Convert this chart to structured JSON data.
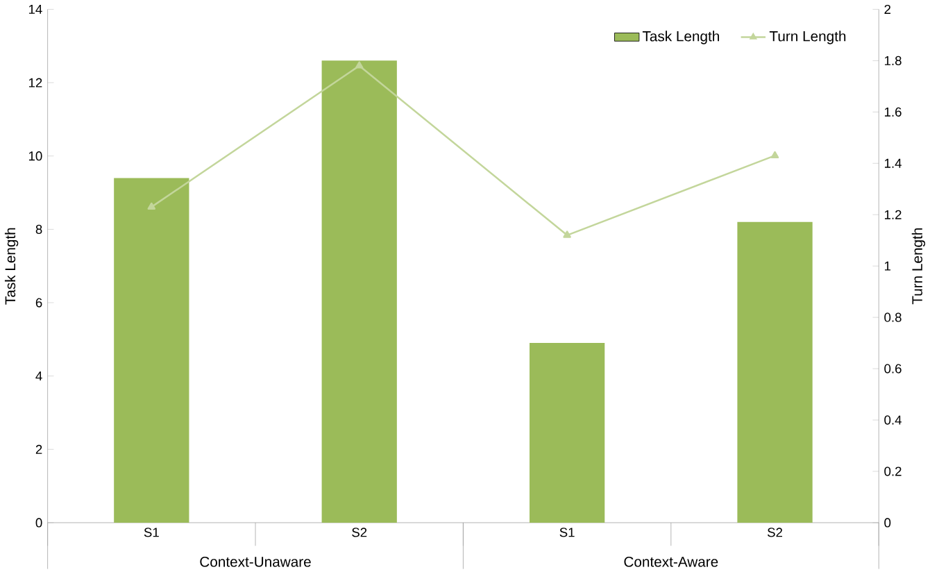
{
  "chart_data": {
    "type": "bar",
    "categories": [
      "S1",
      "S2",
      "S1",
      "S2"
    ],
    "series": [
      {
        "name": "Task Length",
        "color": "#9bbb59",
        "values": [
          9.4,
          12.6,
          4.9,
          8.2
        ]
      },
      {
        "name": "Turn Length",
        "type": "line",
        "axis": "y2",
        "color": "#c3d69b",
        "marker": "triangle",
        "values": [
          1.23,
          1.78,
          1.12,
          1.43
        ]
      }
    ],
    "ylabel": "Task Length",
    "y2label": "Turn Length",
    "ylim": [
      0,
      14
    ],
    "yticks": [
      0,
      2,
      4,
      6,
      8,
      10,
      12,
      14
    ],
    "y2lim": [
      0,
      2
    ],
    "y2ticks": [
      0,
      0.2,
      0.4,
      0.6,
      0.8,
      1,
      1.2,
      1.4,
      1.6,
      1.8,
      2
    ],
    "annotations": [
      "Context-Unaware",
      "Context-Aware"
    ],
    "legend": "top right"
  }
}
